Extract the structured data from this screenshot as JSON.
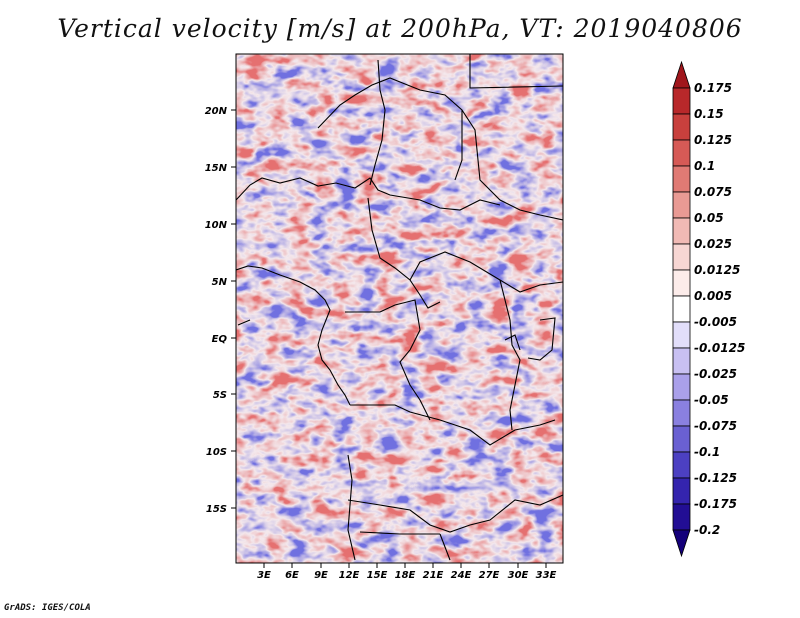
{
  "title": "Vertical velocity [m/s] at 200hPa, VT: 2019040806",
  "credit": "GrADS: IGES/COLA",
  "map": {
    "lat_ticks": [
      "20N",
      "15N",
      "10N",
      "5N",
      "EQ",
      "5S",
      "10S",
      "15S"
    ],
    "lon_ticks": [
      "3E",
      "6E",
      "9E",
      "12E",
      "15E",
      "18E",
      "21E",
      "24E",
      "27E",
      "30E",
      "33E"
    ]
  },
  "colorbar": {
    "labels": [
      "0.175",
      "0.15",
      "0.125",
      "0.1",
      "0.075",
      "0.05",
      "0.025",
      "0.0125",
      "0.005",
      "-0.005",
      "-0.0125",
      "-0.025",
      "-0.05",
      "-0.075",
      "-0.1",
      "-0.125",
      "-0.175",
      "-0.2"
    ],
    "colors": [
      "#a0161c",
      "#b8282a",
      "#c8403d",
      "#d65a56",
      "#e07a74",
      "#e99a94",
      "#f1bab5",
      "#f7d6d3",
      "#fcecea",
      "#ffffff",
      "#e2defa",
      "#c8c0f2",
      "#aaa0ea",
      "#8a80e0",
      "#6a60d2",
      "#4c40c2",
      "#3424ae",
      "#220e94",
      "#14007a"
    ]
  },
  "field_colors": {
    "up": "#e56f6f",
    "down": "#6f6fe0",
    "base": "#f4e8ec",
    "border": "#000000"
  }
}
